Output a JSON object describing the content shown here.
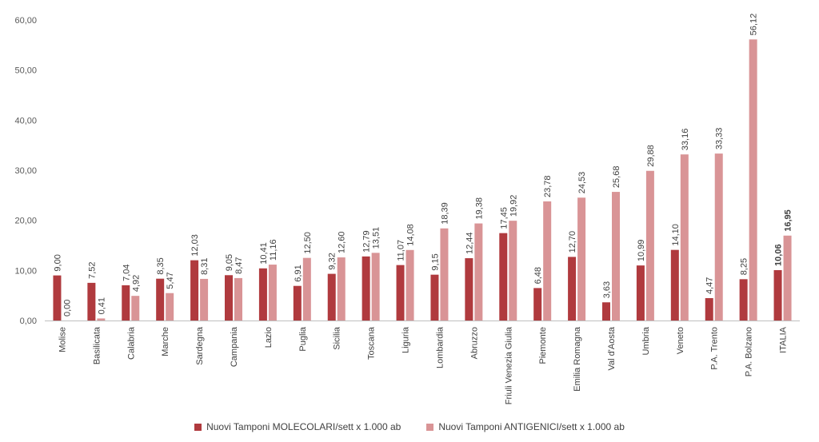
{
  "chart_data": {
    "type": "bar",
    "title": "",
    "xlabel": "",
    "ylabel": "",
    "ylim": [
      0,
      60
    ],
    "y_ticks": [
      "0,00",
      "10,00",
      "20,00",
      "30,00",
      "40,00",
      "50,00",
      "60,00"
    ],
    "grid": false,
    "legend_position": "bottom",
    "categories": [
      "Molise",
      "Basilicata",
      "Calabria",
      "Marche",
      "Sardegna",
      "Campania",
      "Lazio",
      "Puglia",
      "Sicilia",
      "Toscana",
      "Liguria",
      "Lombardia",
      "Abruzzo",
      "Friuli Venezia Giulia",
      "Piemonte",
      "Emilia Romagna",
      "Val d'Aosta",
      "Umbria",
      "Veneto",
      "P.A. Trento",
      "P.A. Bolzano",
      "ITALIA"
    ],
    "series": [
      {
        "name": "Nuovi Tamponi MOLECOLARI/sett x 1.000 ab",
        "color": "#b03a3e",
        "values": [
          9.0,
          7.52,
          7.04,
          8.35,
          12.03,
          9.05,
          10.41,
          6.91,
          9.32,
          12.79,
          11.07,
          9.15,
          12.44,
          17.45,
          6.48,
          12.7,
          3.63,
          10.99,
          14.1,
          4.47,
          8.25,
          10.06
        ],
        "labels": [
          "9,00",
          "7,52",
          "7,04",
          "8,35",
          "12,03",
          "9,05",
          "10,41",
          "6,91",
          "9,32",
          "12,79",
          "11,07",
          "9,15",
          "12,44",
          "17,45",
          "6,48",
          "12,70",
          "3,63",
          "10,99",
          "14,10",
          "4,47",
          "8,25",
          "10,06"
        ]
      },
      {
        "name": "Nuovi Tamponi ANTIGENICI/sett x 1.000 ab",
        "color": "#d99496",
        "values": [
          0.0,
          0.41,
          4.92,
          5.47,
          8.31,
          8.47,
          11.16,
          12.5,
          12.6,
          13.51,
          14.08,
          18.39,
          19.38,
          19.92,
          23.78,
          24.53,
          25.68,
          29.88,
          33.16,
          33.33,
          56.12,
          16.95
        ],
        "labels": [
          "0,00",
          "0,41",
          "4,92",
          "5,47",
          "8,31",
          "8,47",
          "11,16",
          "12,50",
          "12,60",
          "13,51",
          "14,08",
          "18,39",
          "19,38",
          "19,92",
          "23,78",
          "24,53",
          "25,68",
          "29,88",
          "33,16",
          "33,33",
          "56,12",
          "16,95"
        ]
      }
    ],
    "bold_category": "ITALIA"
  }
}
